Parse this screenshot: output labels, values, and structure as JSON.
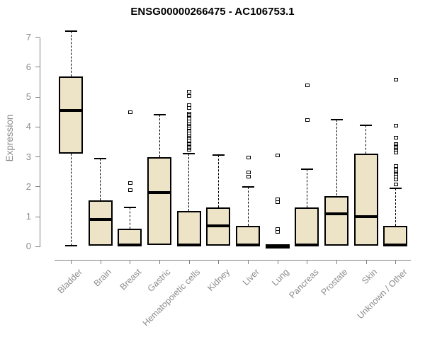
{
  "chart_data": {
    "type": "boxplot",
    "title": "ENSG00000266475 - AC106753.1",
    "ylabel": "Expression",
    "xlabel": "",
    "ylim": [
      0,
      7.2
    ],
    "yticks": [
      0,
      1,
      2,
      3,
      4,
      5,
      6,
      7
    ],
    "grid": false,
    "legend": "none",
    "box_fill_color": "#EDE3C7",
    "box_border_color": "#000000",
    "axis_color": "#808080",
    "tick_label_color": "#8c8c8c",
    "outlier_marker": "open-square",
    "categories": [
      "Bladder",
      "Brain",
      "Breast",
      "Gastric",
      "Hematopoietic cells",
      "Kidney",
      "Liver",
      "Lung",
      "Pancreas",
      "Prostate",
      "Skin",
      "Unknown / Other"
    ],
    "boxes": [
      {
        "category": "Bladder",
        "whisker_low": 0.02,
        "q1": 3.1,
        "median": 4.55,
        "q3": 5.7,
        "whisker_high": 7.2,
        "outliers": []
      },
      {
        "category": "Brain",
        "whisker_low": 0.02,
        "q1": 0.02,
        "median": 0.9,
        "q3": 1.55,
        "whisker_high": 2.95,
        "outliers": []
      },
      {
        "category": "Breast",
        "whisker_low": 0.02,
        "q1": 0.02,
        "median": 0.05,
        "q3": 0.6,
        "whisker_high": 1.3,
        "outliers": [
          4.5,
          2.15,
          1.9
        ]
      },
      {
        "category": "Gastric",
        "whisker_low": 0.05,
        "q1": 0.05,
        "median": 1.8,
        "q3": 3.0,
        "whisker_high": 4.4,
        "outliers": []
      },
      {
        "category": "Hematopoietic cells",
        "whisker_low": 0.02,
        "q1": 0.02,
        "median": 0.05,
        "q3": 1.2,
        "whisker_high": 3.1,
        "outliers": [
          5.2,
          5.05,
          4.75,
          4.65,
          4.45,
          4.4,
          4.3,
          4.2,
          4.1,
          4.05,
          3.95,
          3.9,
          3.8,
          3.7,
          3.65,
          3.55,
          3.45,
          3.4,
          3.3,
          3.25
        ]
      },
      {
        "category": "Kidney",
        "whisker_low": 0.02,
        "q1": 0.02,
        "median": 0.7,
        "q3": 1.3,
        "whisker_high": 3.05,
        "outliers": []
      },
      {
        "category": "Liver",
        "whisker_low": 0.02,
        "q1": 0.02,
        "median": 0.05,
        "q3": 0.7,
        "whisker_high": 2.0,
        "outliers": [
          3.0,
          2.5,
          2.35
        ]
      },
      {
        "category": "Lung",
        "whisker_low": 0.0,
        "q1": 0.0,
        "median": 0.02,
        "q3": 0.05,
        "whisker_high": 0.05,
        "outliers": [
          3.05,
          1.6,
          1.5,
          0.6,
          0.5
        ]
      },
      {
        "category": "Pancreas",
        "whisker_low": 0.02,
        "q1": 0.02,
        "median": 0.05,
        "q3": 1.3,
        "whisker_high": 2.6,
        "outliers": [
          5.4,
          4.25
        ]
      },
      {
        "category": "Prostate",
        "whisker_low": 0.02,
        "q1": 0.02,
        "median": 1.1,
        "q3": 1.7,
        "whisker_high": 4.25,
        "outliers": []
      },
      {
        "category": "Skin",
        "whisker_low": 0.02,
        "q1": 0.02,
        "median": 1.0,
        "q3": 3.1,
        "whisker_high": 4.05,
        "outliers": []
      },
      {
        "category": "Unknown / Other",
        "whisker_low": 0.02,
        "q1": 0.02,
        "median": 0.05,
        "q3": 0.7,
        "whisker_high": 1.95,
        "outliers": [
          5.6,
          4.05,
          3.65,
          3.45,
          3.4,
          3.3,
          3.25,
          3.15,
          2.7,
          2.6,
          2.5,
          2.45,
          2.35,
          2.25,
          2.1
        ]
      }
    ]
  }
}
